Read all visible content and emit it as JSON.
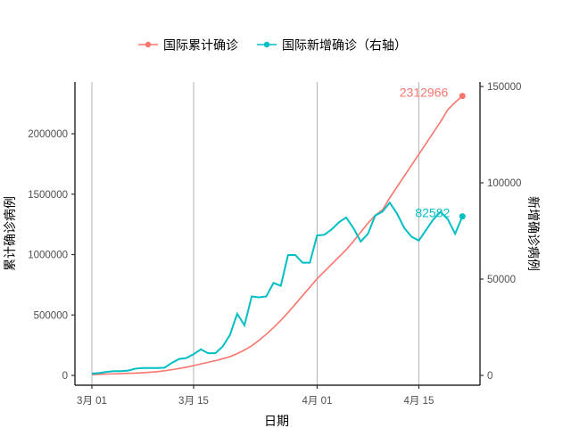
{
  "chart_data": {
    "type": "line",
    "title": "",
    "legend": {
      "position": "top",
      "entries": [
        {
          "label": "国际累计确诊",
          "color": "#F8766D"
        },
        {
          "label": "国际新增确诊（右轴）",
          "color": "#00BFC4"
        }
      ]
    },
    "xlabel": "日期",
    "ylabel": "累计确诊病例",
    "ylabel_right": "新增确诊病例",
    "x_ticks": [
      {
        "label": "3月 01",
        "day": 0
      },
      {
        "label": "3月 15",
        "day": 14
      },
      {
        "label": "4月 01",
        "day": 31
      },
      {
        "label": "4月 15",
        "day": 45
      }
    ],
    "y_ticks_left": [
      "0",
      "500000",
      "1000000",
      "1500000",
      "2000000"
    ],
    "y_ticks_left_values": [
      0,
      500000,
      1000000,
      1500000,
      2000000
    ],
    "y_ticks_right": [
      "0",
      "50000",
      "100000",
      "150000"
    ],
    "y_ticks_right_values": [
      0,
      50000,
      100000,
      150000
    ],
    "ylim_left": [
      -80000,
      2420000
    ],
    "ylim_right": [
      -6000,
      150000
    ],
    "grid": "vertical major lines only",
    "x": [
      "3/01",
      "3/02",
      "3/03",
      "3/04",
      "3/05",
      "3/06",
      "3/07",
      "3/08",
      "3/09",
      "3/10",
      "3/11",
      "3/12",
      "3/13",
      "3/14",
      "3/15",
      "3/16",
      "3/17",
      "3/18",
      "3/19",
      "3/20",
      "3/21",
      "3/22",
      "3/23",
      "3/24",
      "3/25",
      "3/26",
      "3/27",
      "3/28",
      "3/29",
      "3/30",
      "3/31",
      "4/01",
      "4/02",
      "4/03",
      "4/04",
      "4/05",
      "4/06",
      "4/07",
      "4/08",
      "4/09",
      "4/10",
      "4/11",
      "4/12",
      "4/13",
      "4/14",
      "4/15",
      "4/16",
      "4/17",
      "4/18",
      "4/19",
      "4/20",
      "4/21"
    ],
    "series": [
      {
        "name": "国际累计确诊",
        "axis": "left",
        "color": "#F8766D",
        "values": [
          7000,
          9000,
          11000,
          13000,
          15000,
          17000,
          19000,
          22000,
          26000,
          31000,
          38000,
          47000,
          57000,
          68000,
          81000,
          95000,
          108000,
          122000,
          138000,
          155000,
          180000,
          210000,
          245000,
          290000,
          340000,
          395000,
          455000,
          520000,
          590000,
          660000,
          730000,
          800000,
          860000,
          920000,
          980000,
          1040000,
          1110000,
          1185000,
          1260000,
          1325000,
          1370000,
          1470000,
          1560000,
          1650000,
          1740000,
          1830000,
          1920000,
          2010000,
          2100000,
          2200000,
          2260000,
          2312966
        ]
      },
      {
        "name": "国际新增确诊（右轴）",
        "axis": "right",
        "color": "#00BFC4",
        "values": [
          900,
          1200,
          1800,
          2200,
          2200,
          2500,
          3500,
          3800,
          3800,
          3800,
          4000,
          6500,
          8500,
          9000,
          11000,
          13500,
          11500,
          11500,
          15000,
          21000,
          32000,
          26000,
          41000,
          40500,
          41000,
          48000,
          46500,
          62500,
          62500,
          58500,
          58500,
          72700,
          73000,
          75800,
          79500,
          82000,
          76500,
          69500,
          73500,
          83000,
          85000,
          89700,
          84000,
          76500,
          72000,
          70000,
          75500,
          81000,
          85000,
          81000,
          73500,
          82582
        ]
      }
    ],
    "annotations": [
      {
        "text": "2312966",
        "series": "国际累计确诊",
        "x": "4/21"
      },
      {
        "text": "82582",
        "series": "国际新增确诊（右轴）",
        "x": "4/21"
      }
    ]
  }
}
